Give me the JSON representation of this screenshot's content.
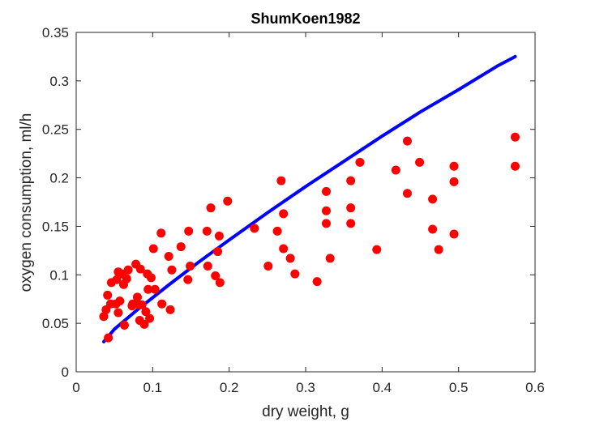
{
  "chart_data": {
    "type": "scatter",
    "title": "ShumKoen1982",
    "xlabel": "dry weight, g",
    "ylabel": "oxygen consumption, ml/h",
    "xlim": [
      0,
      0.6
    ],
    "ylim": [
      0,
      0.35
    ],
    "xticks": [
      "0",
      "0.1",
      "0.2",
      "0.3",
      "0.4",
      "0.5",
      "0.6"
    ],
    "yticks": [
      "0",
      "0.05",
      "0.1",
      "0.15",
      "0.2",
      "0.25",
      "0.3",
      "0.35"
    ],
    "grid": false,
    "colors": {
      "points": "#ff0000",
      "fit_line": "#0000ff",
      "axes": "#262626"
    },
    "series": [
      {
        "kind": "scatter",
        "points": [
          [
            0.036,
            0.057
          ],
          [
            0.039,
            0.064
          ],
          [
            0.041,
            0.079
          ],
          [
            0.042,
            0.035
          ],
          [
            0.045,
            0.07
          ],
          [
            0.046,
            0.092
          ],
          [
            0.052,
            0.07
          ],
          [
            0.053,
            0.095
          ],
          [
            0.055,
            0.061
          ],
          [
            0.055,
            0.103
          ],
          [
            0.057,
            0.073
          ],
          [
            0.06,
            0.101
          ],
          [
            0.062,
            0.09
          ],
          [
            0.063,
            0.048
          ],
          [
            0.066,
            0.096
          ],
          [
            0.068,
            0.105
          ],
          [
            0.073,
            0.068
          ],
          [
            0.074,
            0.07
          ],
          [
            0.078,
            0.111
          ],
          [
            0.08,
            0.077
          ],
          [
            0.082,
            0.069
          ],
          [
            0.083,
            0.053
          ],
          [
            0.084,
            0.106
          ],
          [
            0.086,
            0.069
          ],
          [
            0.089,
            0.049
          ],
          [
            0.091,
            0.062
          ],
          [
            0.093,
            0.101
          ],
          [
            0.094,
            0.085
          ],
          [
            0.096,
            0.055
          ],
          [
            0.098,
            0.097
          ],
          [
            0.101,
            0.127
          ],
          [
            0.103,
            0.085
          ],
          [
            0.111,
            0.143
          ],
          [
            0.112,
            0.07
          ],
          [
            0.121,
            0.119
          ],
          [
            0.123,
            0.064
          ],
          [
            0.125,
            0.105
          ],
          [
            0.137,
            0.129
          ],
          [
            0.146,
            0.095
          ],
          [
            0.147,
            0.145
          ],
          [
            0.149,
            0.109
          ],
          [
            0.171,
            0.145
          ],
          [
            0.172,
            0.109
          ],
          [
            0.176,
            0.169
          ],
          [
            0.182,
            0.099
          ],
          [
            0.185,
            0.124
          ],
          [
            0.187,
            0.14
          ],
          [
            0.188,
            0.092
          ],
          [
            0.198,
            0.176
          ],
          [
            0.233,
            0.148
          ],
          [
            0.251,
            0.109
          ],
          [
            0.263,
            0.145
          ],
          [
            0.268,
            0.197
          ],
          [
            0.271,
            0.163
          ],
          [
            0.271,
            0.127
          ],
          [
            0.28,
            0.117
          ],
          [
            0.286,
            0.101
          ],
          [
            0.315,
            0.093
          ],
          [
            0.327,
            0.186
          ],
          [
            0.327,
            0.166
          ],
          [
            0.327,
            0.153
          ],
          [
            0.332,
            0.117
          ],
          [
            0.359,
            0.197
          ],
          [
            0.359,
            0.169
          ],
          [
            0.359,
            0.153
          ],
          [
            0.371,
            0.216
          ],
          [
            0.393,
            0.126
          ],
          [
            0.418,
            0.208
          ],
          [
            0.433,
            0.238
          ],
          [
            0.433,
            0.184
          ],
          [
            0.449,
            0.216
          ],
          [
            0.466,
            0.178
          ],
          [
            0.466,
            0.147
          ],
          [
            0.474,
            0.126
          ],
          [
            0.494,
            0.212
          ],
          [
            0.494,
            0.196
          ],
          [
            0.494,
            0.142
          ],
          [
            0.574,
            0.242
          ],
          [
            0.574,
            0.212
          ]
        ]
      },
      {
        "kind": "line",
        "points": [
          [
            0.036,
            0.031
          ],
          [
            0.05,
            0.044
          ],
          [
            0.08,
            0.064
          ],
          [
            0.12,
            0.089
          ],
          [
            0.16,
            0.113
          ],
          [
            0.2,
            0.136
          ],
          [
            0.25,
            0.164
          ],
          [
            0.3,
            0.191
          ],
          [
            0.35,
            0.217
          ],
          [
            0.4,
            0.243
          ],
          [
            0.45,
            0.268
          ],
          [
            0.5,
            0.291
          ],
          [
            0.55,
            0.315
          ],
          [
            0.574,
            0.325
          ]
        ]
      }
    ]
  }
}
